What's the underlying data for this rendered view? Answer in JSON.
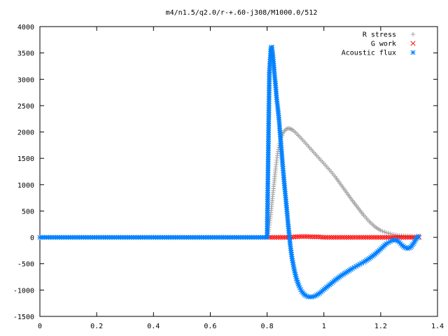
{
  "chart_data": {
    "type": "scatter",
    "title": "m4/n1.5/q2.0/r-+.60-j308/M1000.0/512",
    "xlabel": "",
    "ylabel": "",
    "xlim": [
      0,
      1.4
    ],
    "ylim": [
      -1500,
      4000
    ],
    "xticks": [
      "0",
      "0.2",
      "0.4",
      "0.6",
      "0.8",
      "1",
      "1.2",
      "1.4"
    ],
    "yticks": [
      "4000",
      "3500",
      "3000",
      "2500",
      "2000",
      "1500",
      "1000",
      "500",
      "0",
      "-500",
      "-1000",
      "-1500"
    ],
    "grid": false,
    "legend_position": "top-right",
    "colors": {
      "r_stress": "#a0a0a0",
      "g_work": "#ff0000",
      "acoustic_flux": "#0080ff",
      "axis": "#000000"
    },
    "series": [
      {
        "name": "R stress",
        "marker": "plus",
        "points": [
          [
            0.0,
            0
          ],
          [
            0.1,
            0
          ],
          [
            0.2,
            0
          ],
          [
            0.3,
            0
          ],
          [
            0.4,
            0
          ],
          [
            0.5,
            0
          ],
          [
            0.6,
            0
          ],
          [
            0.7,
            0
          ],
          [
            0.8,
            0
          ],
          [
            0.806,
            150
          ],
          [
            0.812,
            400
          ],
          [
            0.818,
            700
          ],
          [
            0.824,
            1000
          ],
          [
            0.83,
            1300
          ],
          [
            0.836,
            1550
          ],
          [
            0.842,
            1750
          ],
          [
            0.85,
            1900
          ],
          [
            0.858,
            2000
          ],
          [
            0.866,
            2050
          ],
          [
            0.874,
            2070
          ],
          [
            0.882,
            2060
          ],
          [
            0.89,
            2040
          ],
          [
            0.9,
            1990
          ],
          [
            0.92,
            1880
          ],
          [
            0.94,
            1760
          ],
          [
            0.96,
            1640
          ],
          [
            0.98,
            1520
          ],
          [
            1.0,
            1400
          ],
          [
            1.02,
            1280
          ],
          [
            1.04,
            1150
          ],
          [
            1.06,
            1000
          ],
          [
            1.08,
            850
          ],
          [
            1.1,
            700
          ],
          [
            1.12,
            560
          ],
          [
            1.14,
            420
          ],
          [
            1.16,
            300
          ],
          [
            1.18,
            200
          ],
          [
            1.2,
            130
          ],
          [
            1.22,
            90
          ],
          [
            1.24,
            60
          ],
          [
            1.26,
            40
          ],
          [
            1.28,
            30
          ],
          [
            1.3,
            25
          ],
          [
            1.32,
            20
          ],
          [
            1.335,
            20
          ]
        ]
      },
      {
        "name": "G work",
        "marker": "cross",
        "points": [
          [
            0.8,
            0
          ],
          [
            0.82,
            0
          ],
          [
            0.84,
            0
          ],
          [
            0.86,
            0
          ],
          [
            0.88,
            0
          ],
          [
            0.9,
            10
          ],
          [
            0.92,
            15
          ],
          [
            0.94,
            15
          ],
          [
            0.96,
            10
          ],
          [
            0.98,
            10
          ],
          [
            1.0,
            0
          ],
          [
            1.02,
            0
          ],
          [
            1.04,
            0
          ],
          [
            1.06,
            0
          ],
          [
            1.08,
            0
          ],
          [
            1.1,
            0
          ],
          [
            1.12,
            0
          ],
          [
            1.14,
            0
          ],
          [
            1.16,
            0
          ],
          [
            1.18,
            0
          ],
          [
            1.2,
            0
          ],
          [
            1.22,
            0
          ],
          [
            1.24,
            0
          ],
          [
            1.26,
            0
          ],
          [
            1.28,
            0
          ],
          [
            1.3,
            0
          ],
          [
            1.32,
            0
          ],
          [
            1.335,
            0
          ]
        ]
      },
      {
        "name": "Acoustic flux",
        "marker": "star",
        "points": [
          [
            0.0,
            0
          ],
          [
            0.1,
            0
          ],
          [
            0.2,
            0
          ],
          [
            0.3,
            0
          ],
          [
            0.4,
            0
          ],
          [
            0.5,
            0
          ],
          [
            0.6,
            0
          ],
          [
            0.7,
            0
          ],
          [
            0.8,
            0
          ],
          [
            0.805,
            1950
          ],
          [
            0.808,
            3130
          ],
          [
            0.811,
            3420
          ],
          [
            0.813,
            3560
          ],
          [
            0.815,
            3610
          ],
          [
            0.817,
            3600
          ],
          [
            0.82,
            3480
          ],
          [
            0.823,
            3300
          ],
          [
            0.826,
            3100
          ],
          [
            0.83,
            2880
          ],
          [
            0.834,
            2620
          ],
          [
            0.838,
            2440
          ],
          [
            0.842,
            2230
          ],
          [
            0.846,
            1950
          ],
          [
            0.85,
            1700
          ],
          [
            0.854,
            1430
          ],
          [
            0.858,
            1180
          ],
          [
            0.862,
            940
          ],
          [
            0.866,
            720
          ],
          [
            0.87,
            490
          ],
          [
            0.874,
            250
          ],
          [
            0.878,
            40
          ],
          [
            0.882,
            -170
          ],
          [
            0.888,
            -400
          ],
          [
            0.895,
            -600
          ],
          [
            0.903,
            -780
          ],
          [
            0.912,
            -920
          ],
          [
            0.922,
            -1030
          ],
          [
            0.934,
            -1100
          ],
          [
            0.946,
            -1130
          ],
          [
            0.958,
            -1130
          ],
          [
            0.97,
            -1110
          ],
          [
            0.985,
            -1060
          ],
          [
            1.0,
            -990
          ],
          [
            1.02,
            -900
          ],
          [
            1.04,
            -810
          ],
          [
            1.06,
            -730
          ],
          [
            1.08,
            -660
          ],
          [
            1.1,
            -590
          ],
          [
            1.12,
            -530
          ],
          [
            1.14,
            -470
          ],
          [
            1.16,
            -400
          ],
          [
            1.18,
            -320
          ],
          [
            1.2,
            -220
          ],
          [
            1.22,
            -120
          ],
          [
            1.24,
            -60
          ],
          [
            1.255,
            -50
          ],
          [
            1.265,
            -90
          ],
          [
            1.275,
            -150
          ],
          [
            1.285,
            -190
          ],
          [
            1.295,
            -210
          ],
          [
            1.305,
            -190
          ],
          [
            1.315,
            -120
          ],
          [
            1.325,
            -30
          ],
          [
            1.333,
            20
          ]
        ]
      }
    ]
  }
}
